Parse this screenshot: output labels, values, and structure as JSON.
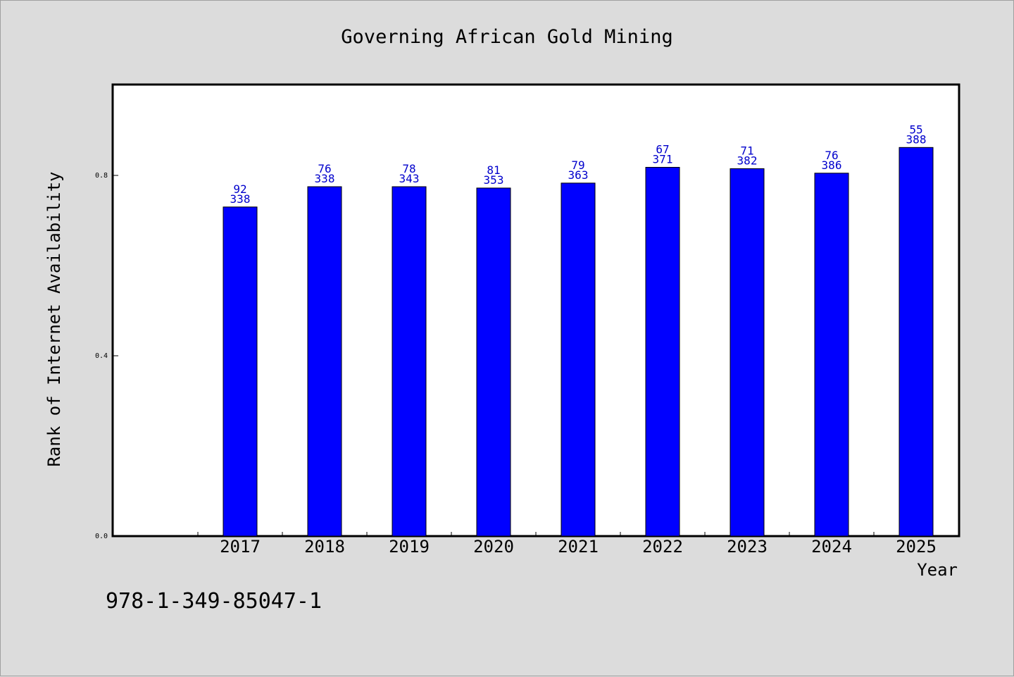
{
  "chart_data": {
    "type": "bar",
    "title": "Governing African Gold Mining",
    "xlabel": "Year",
    "ylabel": "Rank of Internet Availability",
    "categories": [
      "2017",
      "2018",
      "2019",
      "2020",
      "2021",
      "2022",
      "2023",
      "2024",
      "2025"
    ],
    "values": [
      0.73,
      0.775,
      0.775,
      0.772,
      0.783,
      0.818,
      0.815,
      0.805,
      0.862
    ],
    "labels_top": [
      "92",
      "76",
      "78",
      "81",
      "79",
      "67",
      "71",
      "76",
      "55"
    ],
    "labels_bottom": [
      "338",
      "338",
      "343",
      "353",
      "363",
      "371",
      "382",
      "386",
      "388"
    ],
    "ylim": [
      0,
      1.0
    ],
    "yticks": [
      0.0,
      0.4,
      0.8
    ],
    "ytick_labels": [
      "0.0",
      "0.4",
      "0.8"
    ],
    "grid": false,
    "legend": "none",
    "bar_color": "#0000ff",
    "label_color": "#0000cc"
  },
  "footer": {
    "isbn": "978-1-349-85047-1"
  }
}
